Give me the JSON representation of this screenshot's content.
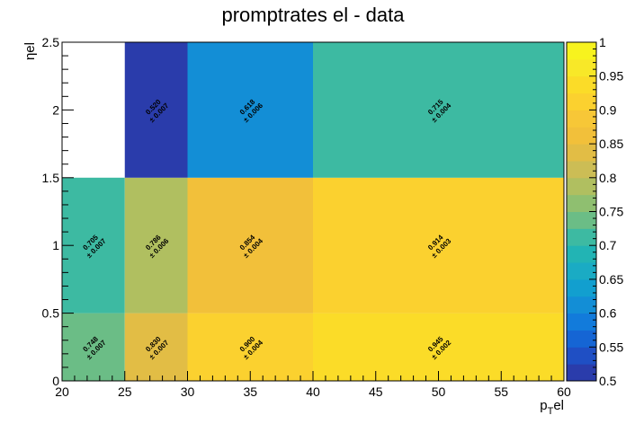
{
  "chart_data": {
    "type": "heatmap",
    "title": "promptrates el - data",
    "xlabel": "p_T el",
    "ylabel": "ηel",
    "x_edges": [
      20,
      25,
      30,
      40,
      60
    ],
    "y_edges": [
      0,
      0.5,
      1.5,
      2.5
    ],
    "xlim": [
      20,
      60
    ],
    "ylim": [
      0,
      2.5
    ],
    "zlim": [
      0.5,
      1.0
    ],
    "x_ticks": [
      "20",
      "25",
      "30",
      "35",
      "40",
      "45",
      "50",
      "55",
      "60"
    ],
    "y_ticks": [
      "0",
      "0.5",
      "1",
      "1.5",
      "2",
      "2.5"
    ],
    "z_ticks": [
      "0.5",
      "0.55",
      "0.6",
      "0.65",
      "0.7",
      "0.75",
      "0.8",
      "0.85",
      "0.9",
      "0.95",
      "1"
    ],
    "cells": [
      {
        "xi": 0,
        "yi": 0,
        "value": 0.748,
        "value_label": "0.748",
        "error_label": "± 0.007"
      },
      {
        "xi": 1,
        "yi": 0,
        "value": 0.83,
        "value_label": "0.830",
        "error_label": "± 0.007"
      },
      {
        "xi": 2,
        "yi": 0,
        "value": 0.9,
        "value_label": "0.900",
        "error_label": "± 0.004"
      },
      {
        "xi": 3,
        "yi": 0,
        "value": 0.945,
        "value_label": "0.945",
        "error_label": "± 0.002"
      },
      {
        "xi": 0,
        "yi": 1,
        "value": 0.705,
        "value_label": "0.705",
        "error_label": "± 0.007"
      },
      {
        "xi": 1,
        "yi": 1,
        "value": 0.786,
        "value_label": "0.786",
        "error_label": "± 0.006"
      },
      {
        "xi": 2,
        "yi": 1,
        "value": 0.854,
        "value_label": "0.854",
        "error_label": "± 0.004"
      },
      {
        "xi": 3,
        "yi": 1,
        "value": 0.914,
        "value_label": "0.914",
        "error_label": "± 0.003"
      },
      {
        "xi": 1,
        "yi": 2,
        "value": 0.52,
        "value_label": "0.520",
        "error_label": "± 0.007"
      },
      {
        "xi": 2,
        "yi": 2,
        "value": 0.618,
        "value_label": "0.618",
        "error_label": "± 0.006"
      },
      {
        "xi": 3,
        "yi": 2,
        "value": 0.715,
        "value_label": "0.715",
        "error_label": "± 0.004"
      }
    ],
    "palette": [
      "#2a3cab",
      "#1f4fc4",
      "#1565d4",
      "#127bdb",
      "#138ed6",
      "#129fcf",
      "#1aabc4",
      "#22b4b4",
      "#3dbaa2",
      "#6bbd86",
      "#8fbf70",
      "#b0bf60",
      "#ccbd55",
      "#e2bd45",
      "#f2c03a",
      "#f7c737",
      "#fbd12f",
      "#fbdc28",
      "#f8e828",
      "#f7f31e"
    ]
  }
}
